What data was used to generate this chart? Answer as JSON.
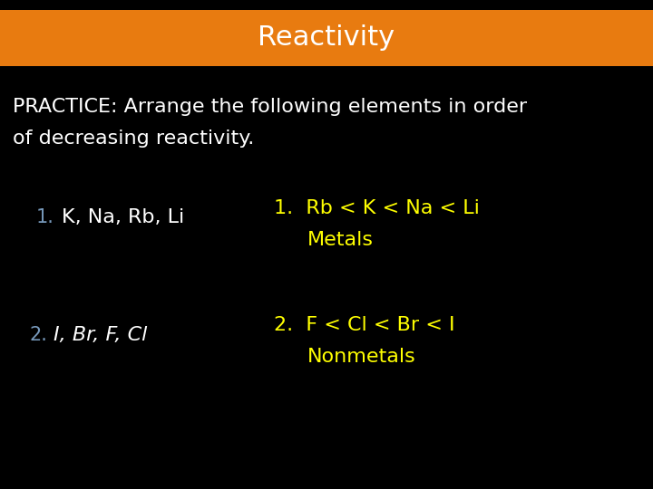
{
  "title": "Reactivity",
  "title_bg_color": "#E87B10",
  "title_text_color": "#FFFFFF",
  "bg_color": "#000000",
  "practice_line1": "PRACTICE: Arrange the following elements in order",
  "practice_line2": "of decreasing reactivity.",
  "practice_text_color": "#FFFFFF",
  "q1_number": "1.",
  "q1_text": "K, Na, Rb, Li",
  "q1_number_color": "#7799BB",
  "q1_text_color": "#FFFFFF",
  "a1_line1": "1.  Rb < K < Na < Li",
  "a1_line2": "Metals",
  "a1_color": "#FFFF00",
  "q2_number": "2.",
  "q2_text": "I, Br, F, Cl",
  "q2_number_color": "#7799BB",
  "q2_text_color": "#FFFFFF",
  "a2_line1": "2.  F < Cl < Br < I",
  "a2_line2": "Nonmetals",
  "a2_color": "#FFFF00",
  "title_fontsize": 22,
  "body_fontsize": 16,
  "answer_fontsize": 16
}
